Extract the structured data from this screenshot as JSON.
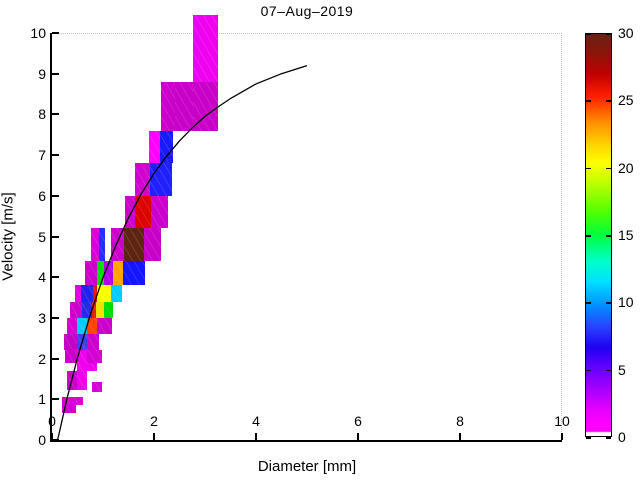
{
  "figure": {
    "background": "#ffffff"
  },
  "chart_data": {
    "type": "heatmap",
    "title": "07–Aug–2019",
    "xlabel": "Diameter [mm]",
    "ylabel": "Velocity [m/s]",
    "xlim": [
      0,
      10
    ],
    "ylim": [
      0,
      10
    ],
    "x_ticks": [
      0,
      2,
      4,
      6,
      8,
      10
    ],
    "y_ticks": [
      0,
      1,
      2,
      3,
      4,
      5,
      6,
      7,
      8,
      9,
      10
    ],
    "grid": false,
    "legend": "none",
    "colorbar": {
      "min": 0,
      "max": 30,
      "ticks": [
        0,
        5,
        10,
        15,
        20,
        25,
        30
      ],
      "gradient_top_to_bottom": [
        [
          0.0,
          "#6B1F15"
        ],
        [
          0.035,
          "#7E1A0C"
        ],
        [
          0.1,
          "#C00000"
        ],
        [
          0.155,
          "#FF1E00"
        ],
        [
          0.22,
          "#FF9000"
        ],
        [
          0.28,
          "#FFD800"
        ],
        [
          0.32,
          "#FFFF00"
        ],
        [
          0.37,
          "#BFFF00"
        ],
        [
          0.44,
          "#55FF00"
        ],
        [
          0.5,
          "#00FF3C"
        ],
        [
          0.565,
          "#00FFC8"
        ],
        [
          0.615,
          "#00E1FF"
        ],
        [
          0.67,
          "#0096FF"
        ],
        [
          0.73,
          "#2841FF"
        ],
        [
          0.78,
          "#2000F0"
        ],
        [
          0.83,
          "#6400FF"
        ],
        [
          0.88,
          "#A000FF"
        ],
        [
          0.93,
          "#E100FF"
        ],
        [
          0.972,
          "#FF00FF"
        ],
        [
          0.988,
          "#FF00FF"
        ],
        [
          0.992,
          "#FFFFFF"
        ],
        [
          1.0,
          "#FFFFFF"
        ]
      ]
    },
    "cells_format": [
      "d1",
      "d2",
      "v1",
      "v2",
      "color",
      "value"
    ],
    "cells": [
      [
        2.77,
        3.26,
        8.8,
        10.45,
        "#EE00EE",
        2
      ],
      [
        2.14,
        2.42,
        7.6,
        8.8,
        "#C800C8",
        3
      ],
      [
        2.42,
        2.77,
        7.6,
        8.8,
        "#C800C8",
        3
      ],
      [
        2.77,
        3.26,
        7.6,
        8.8,
        "#C800C8",
        3
      ],
      [
        1.9,
        2.12,
        6.8,
        7.6,
        "#FF00FF",
        1
      ],
      [
        2.12,
        2.37,
        6.8,
        7.6,
        "#1A1AFF",
        7
      ],
      [
        1.63,
        1.92,
        6.0,
        6.8,
        "#D000D0",
        2
      ],
      [
        1.92,
        2.35,
        6.0,
        6.8,
        "#2020FF",
        7
      ],
      [
        1.43,
        1.63,
        5.2,
        6.0,
        "#CC00CC",
        3
      ],
      [
        1.63,
        1.94,
        5.2,
        6.0,
        "#DD0000",
        26
      ],
      [
        1.94,
        2.27,
        5.2,
        6.0,
        "#CC00CC",
        3
      ],
      [
        0.76,
        0.92,
        4.4,
        5.2,
        "#D800D8",
        2
      ],
      [
        0.92,
        1.04,
        4.4,
        5.2,
        "#2A2AFF",
        6
      ],
      [
        1.16,
        1.41,
        4.4,
        5.2,
        "#CC00CC",
        3
      ],
      [
        1.41,
        1.8,
        4.4,
        5.2,
        "#5E2412",
        30
      ],
      [
        1.8,
        2.14,
        4.4,
        5.2,
        "#C800C8",
        3
      ],
      [
        0.64,
        0.88,
        3.8,
        4.4,
        "#CC00CC",
        3
      ],
      [
        0.88,
        1.02,
        3.8,
        4.4,
        "#00DD00",
        16
      ],
      [
        1.02,
        1.2,
        3.8,
        4.4,
        "#B400E6",
        4
      ],
      [
        1.2,
        1.4,
        3.8,
        4.4,
        "#FFA500",
        22
      ],
      [
        1.4,
        1.82,
        3.8,
        4.4,
        "#1414FF",
        7
      ],
      [
        0.45,
        0.57,
        3.4,
        3.8,
        "#E000E0",
        2
      ],
      [
        0.57,
        0.81,
        3.4,
        3.8,
        "#2222EE",
        6
      ],
      [
        0.81,
        0.89,
        3.4,
        3.8,
        "#EE1100",
        26
      ],
      [
        0.89,
        1.16,
        3.4,
        3.8,
        "#FFFF00",
        20
      ],
      [
        1.16,
        1.37,
        3.4,
        3.8,
        "#00CCFF",
        11
      ],
      [
        0.35,
        0.58,
        3.0,
        3.4,
        "#CC00CC",
        3
      ],
      [
        0.58,
        0.78,
        3.0,
        3.4,
        "#2A2AEE",
        6
      ],
      [
        0.78,
        0.86,
        3.0,
        3.4,
        "#E62000",
        25
      ],
      [
        0.86,
        1.02,
        3.0,
        3.4,
        "#F0E000",
        20
      ],
      [
        1.02,
        1.2,
        3.0,
        3.4,
        "#00DD00",
        16
      ],
      [
        0.3,
        0.49,
        2.6,
        3.0,
        "#D400D4",
        2
      ],
      [
        0.49,
        0.69,
        2.6,
        3.0,
        "#00CCFF",
        11
      ],
      [
        0.69,
        0.88,
        2.6,
        3.0,
        "#FF4500",
        23
      ],
      [
        0.88,
        1.18,
        2.6,
        3.0,
        "#CC00CC",
        3
      ],
      [
        0.23,
        0.49,
        2.2,
        2.6,
        "#C400C4",
        3
      ],
      [
        0.49,
        0.69,
        2.2,
        2.6,
        "#4040EE",
        6
      ],
      [
        0.69,
        0.92,
        2.2,
        2.6,
        "#CC00CC",
        3
      ],
      [
        0.26,
        0.49,
        1.9,
        2.2,
        "#C800C8",
        3
      ],
      [
        0.69,
        0.98,
        1.9,
        2.2,
        "#D400D4",
        2
      ],
      [
        0.49,
        0.69,
        1.23,
        2.2,
        "#EE00EE",
        2
      ],
      [
        0.69,
        0.88,
        1.7,
        1.9,
        "#EE00EE",
        2
      ],
      [
        0.3,
        0.5,
        1.23,
        1.7,
        "#C800C8",
        3
      ],
      [
        0.79,
        0.98,
        1.18,
        1.42,
        "#D800D8",
        2
      ],
      [
        0.2,
        0.6,
        0.86,
        1.05,
        "#D400D4",
        2
      ],
      [
        0.2,
        0.47,
        0.66,
        0.86,
        "#CC00CC",
        3
      ]
    ],
    "curve": {
      "name": "terminal-velocity-curve",
      "color": "#000000",
      "points": [
        [
          0.11,
          0.0
        ],
        [
          0.3,
          1.05
        ],
        [
          0.5,
          2.02
        ],
        [
          0.75,
          3.08
        ],
        [
          1.0,
          3.99
        ],
        [
          1.25,
          4.78
        ],
        [
          1.5,
          5.46
        ],
        [
          1.75,
          6.05
        ],
        [
          2.0,
          6.55
        ],
        [
          2.25,
          6.98
        ],
        [
          2.5,
          7.35
        ],
        [
          2.75,
          7.67
        ],
        [
          3.0,
          7.95
        ],
        [
          3.25,
          8.18
        ],
        [
          3.5,
          8.39
        ],
        [
          3.75,
          8.57
        ],
        [
          4.0,
          8.75
        ],
        [
          4.5,
          9.0
        ],
        [
          5.0,
          9.2
        ]
      ]
    }
  }
}
